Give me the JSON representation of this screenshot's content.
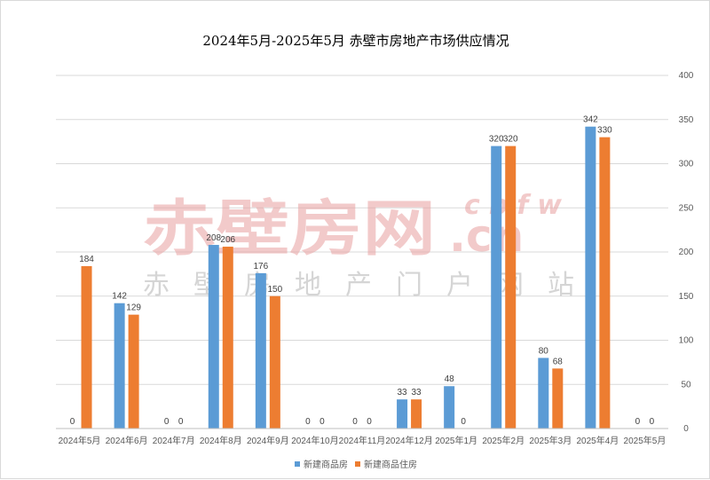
{
  "chart_data": {
    "type": "bar",
    "title": "2024年5月-2025年5月 赤壁市房地产市场供应情况",
    "categories": [
      "2024年5月",
      "2024年6月",
      "2024年7月",
      "2024年8月",
      "2024年9月",
      "2024年10月",
      "2024年11月",
      "2024年12月",
      "2025年1月",
      "2025年2月",
      "2025年3月",
      "2025年4月",
      "2025年5月"
    ],
    "series": [
      {
        "name": "新建商品房",
        "color": "#5b9bd5",
        "values": [
          0,
          142,
          0,
          208,
          176,
          0,
          0,
          33,
          48,
          320,
          80,
          342,
          0
        ]
      },
      {
        "name": "新建商品住房",
        "color": "#ed7d31",
        "values": [
          184,
          129,
          0,
          206,
          150,
          0,
          0,
          33,
          0,
          320,
          68,
          330,
          0
        ]
      }
    ],
    "ylim": [
      0,
      400
    ],
    "yticks": [
      0,
      50,
      100,
      150,
      200,
      250,
      300,
      350,
      400
    ],
    "y_axis_side": "right",
    "grid": true,
    "legend_position": "bottom",
    "watermark": {
      "main": "赤壁房网",
      "domain_top": "cbfw",
      "domain_bottom": ".cn",
      "subtitle": [
        "赤",
        "壁",
        "房",
        "地",
        "产",
        "门",
        "户",
        "网",
        "站"
      ]
    }
  }
}
